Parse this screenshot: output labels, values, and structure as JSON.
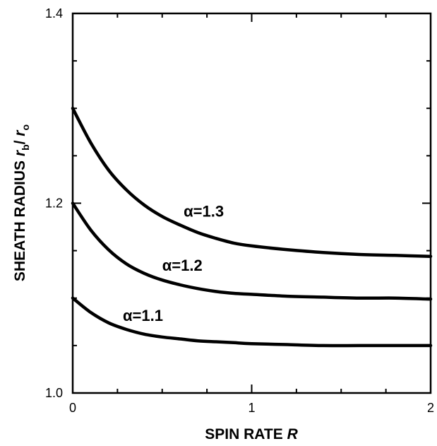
{
  "chart_data": {
    "type": "line",
    "title": "",
    "xlabel": {
      "text": "SPIN RATE ",
      "var": "R"
    },
    "ylabel": {
      "text": "SHEATH RADIUS ",
      "var1": "r",
      "sub1": "b",
      "slash": "/ ",
      "var2": "r",
      "sub2": "o"
    },
    "xlim": [
      0,
      2
    ],
    "ylim": [
      1.0,
      1.4
    ],
    "x_ticks": [
      {
        "value": 0,
        "label": "0"
      },
      {
        "value": 1,
        "label": "1"
      },
      {
        "value": 2,
        "label": "2"
      }
    ],
    "y_ticks": [
      {
        "value": 1.0,
        "label": "1.0"
      },
      {
        "value": 1.2,
        "label": "1.2"
      },
      {
        "value": 1.4,
        "label": "1.4"
      }
    ],
    "x_minor_step": 0.25,
    "y_minor_step": 0.05,
    "grid": false,
    "series": [
      {
        "label_text": "α=1.3",
        "label_anchor": {
          "x": 0.62,
          "y": 1.186
        },
        "x": [
          0,
          0.1,
          0.2,
          0.3,
          0.4,
          0.5,
          0.6,
          0.7,
          0.8,
          0.9,
          1.0,
          1.2,
          1.4,
          1.6,
          1.8,
          2.0
        ],
        "y": [
          1.3,
          1.264,
          1.235,
          1.214,
          1.198,
          1.186,
          1.177,
          1.169,
          1.163,
          1.158,
          1.155,
          1.151,
          1.148,
          1.146,
          1.145,
          1.144
        ]
      },
      {
        "label_text": "α=1.2",
        "label_anchor": {
          "x": 0.5,
          "y": 1.129
        },
        "x": [
          0,
          0.1,
          0.2,
          0.3,
          0.4,
          0.5,
          0.6,
          0.7,
          0.8,
          0.9,
          1.0,
          1.2,
          1.4,
          1.6,
          1.8,
          2.0
        ],
        "y": [
          1.2,
          1.172,
          1.151,
          1.136,
          1.126,
          1.119,
          1.114,
          1.11,
          1.107,
          1.105,
          1.104,
          1.102,
          1.101,
          1.1,
          1.1,
          1.099
        ]
      },
      {
        "label_text": "α=1.1",
        "label_anchor": {
          "x": 0.28,
          "y": 1.076
        },
        "x": [
          0,
          0.1,
          0.2,
          0.3,
          0.4,
          0.5,
          0.6,
          0.7,
          0.8,
          0.9,
          1.0,
          1.2,
          1.4,
          1.6,
          1.8,
          2.0
        ],
        "y": [
          1.1,
          1.085,
          1.074,
          1.067,
          1.062,
          1.059,
          1.057,
          1.055,
          1.054,
          1.053,
          1.052,
          1.051,
          1.05,
          1.05,
          1.05,
          1.05
        ]
      }
    ],
    "line_color": "#000000"
  }
}
